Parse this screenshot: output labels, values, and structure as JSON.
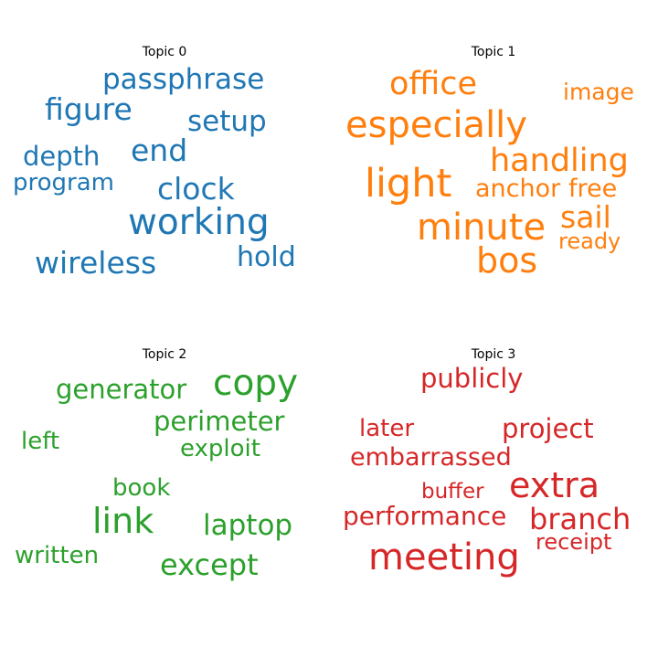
{
  "topics": [
    {
      "title": "Topic 0",
      "color": "#1f77b4",
      "words": [
        "passphrase",
        "figure",
        "setup",
        "end",
        "depth",
        "program",
        "clock",
        "working",
        "wireless",
        "hold"
      ]
    },
    {
      "title": "Topic 1",
      "color": "#ff7f0e",
      "words": [
        "office",
        "image",
        "especially",
        "handling",
        "light",
        "anchor",
        "free",
        "sail",
        "minute",
        "ready",
        "bos"
      ]
    },
    {
      "title": "Topic 2",
      "color": "#2ca02c",
      "words": [
        "generator",
        "copy",
        "perimeter",
        "left",
        "exploit",
        "book",
        "link",
        "laptop",
        "written",
        "except"
      ]
    },
    {
      "title": "Topic 3",
      "color": "#d62728",
      "words": [
        "publicly",
        "later",
        "project",
        "embarrassed",
        "buffer",
        "extra",
        "performance",
        "branch",
        "receipt",
        "meeting"
      ]
    }
  ]
}
